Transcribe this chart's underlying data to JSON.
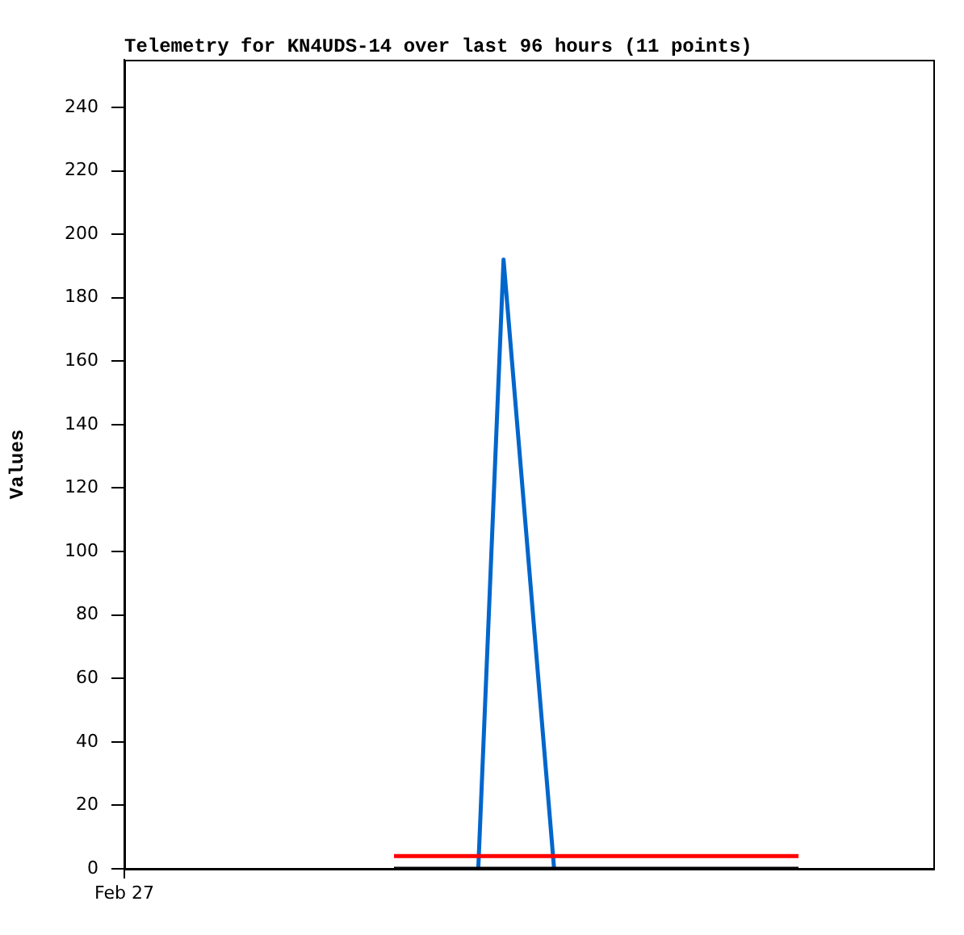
{
  "chart_data": {
    "type": "line",
    "title": "Telemetry for KN4UDS-14 over last 96 hours (11 points)",
    "ylabel": "Values",
    "categories": [
      "Feb 27",
      null,
      null,
      null,
      null,
      null,
      null,
      null,
      null,
      null,
      null,
      null,
      null,
      null,
      null,
      null,
      null,
      null,
      null,
      null,
      null,
      null,
      null,
      null,
      null,
      null,
      null,
      null,
      null,
      null,
      null,
      null,
      null,
      null,
      null,
      null,
      null,
      null,
      null,
      null,
      null,
      null,
      null,
      null,
      null,
      null,
      null,
      null,
      null,
      null,
      null,
      null,
      null,
      null,
      null,
      null,
      null,
      null,
      null,
      null,
      null,
      null,
      null,
      null,
      null,
      null,
      null,
      null,
      null,
      null,
      null,
      null,
      null,
      null,
      null,
      null,
      null,
      null,
      null,
      null,
      null,
      null,
      null,
      null,
      null,
      null,
      null,
      null,
      null,
      null,
      null,
      null,
      null,
      null,
      null,
      null,
      null
    ],
    "ylim": [
      0,
      255
    ],
    "yticks": [
      0,
      20,
      40,
      60,
      80,
      100,
      120,
      140,
      160,
      180,
      200,
      220,
      240
    ],
    "grid": false,
    "legend": false,
    "marker": "none",
    "line_style": "solid",
    "series": [
      {
        "color": "#000000",
        "values": [
          null,
          null,
          null,
          null,
          null,
          null,
          null,
          null,
          null,
          null,
          null,
          null,
          null,
          null,
          null,
          null,
          null,
          null,
          null,
          null,
          null,
          null,
          null,
          null,
          null,
          null,
          null,
          null,
          null,
          null,
          null,
          null,
          0,
          null,
          null,
          null,
          null,
          null,
          null,
          null,
          null,
          null,
          null,
          null,
          null,
          null,
          null,
          null,
          null,
          null,
          null,
          null,
          null,
          null,
          null,
          null,
          null,
          null,
          null,
          null,
          null,
          null,
          null,
          null,
          null,
          null,
          null,
          null,
          null,
          null,
          null,
          null,
          null,
          null,
          null,
          null,
          null,
          null,
          null,
          null,
          0,
          null,
          null,
          null,
          null,
          null,
          null,
          null,
          null,
          null,
          null,
          null,
          null,
          null,
          null,
          null,
          null
        ]
      },
      {
        "color": "#ff0000",
        "values": [
          null,
          null,
          null,
          null,
          null,
          null,
          null,
          null,
          null,
          null,
          null,
          null,
          null,
          null,
          null,
          null,
          null,
          null,
          null,
          null,
          null,
          null,
          null,
          null,
          null,
          null,
          null,
          null,
          null,
          null,
          null,
          null,
          4,
          null,
          null,
          null,
          null,
          null,
          null,
          null,
          null,
          null,
          null,
          null,
          null,
          null,
          null,
          null,
          null,
          null,
          null,
          null,
          null,
          null,
          null,
          null,
          null,
          null,
          null,
          null,
          null,
          null,
          null,
          null,
          null,
          null,
          null,
          null,
          null,
          null,
          null,
          null,
          null,
          null,
          null,
          null,
          null,
          null,
          null,
          null,
          4,
          null,
          null,
          null,
          null,
          null,
          null,
          null,
          null,
          null,
          null,
          null,
          null,
          null,
          null,
          null,
          null
        ]
      },
      {
        "color": "#0066cc",
        "values": [
          null,
          null,
          null,
          null,
          null,
          null,
          null,
          null,
          null,
          null,
          null,
          null,
          null,
          null,
          null,
          null,
          null,
          null,
          null,
          null,
          null,
          null,
          null,
          null,
          null,
          null,
          null,
          null,
          null,
          null,
          null,
          null,
          null,
          null,
          null,
          null,
          null,
          null,
          null,
          null,
          null,
          null,
          0,
          null,
          null,
          192,
          null,
          null,
          null,
          null,
          null,
          0,
          null,
          null,
          null,
          null,
          null,
          null,
          null,
          null,
          null,
          null,
          null,
          null,
          null,
          null,
          null,
          null,
          null,
          null,
          null,
          null,
          null,
          null,
          null,
          null,
          null,
          null,
          null,
          null,
          null,
          null,
          null,
          null,
          null,
          null,
          null,
          null,
          null,
          null,
          null,
          null,
          null,
          null,
          null,
          null,
          null
        ]
      }
    ]
  }
}
